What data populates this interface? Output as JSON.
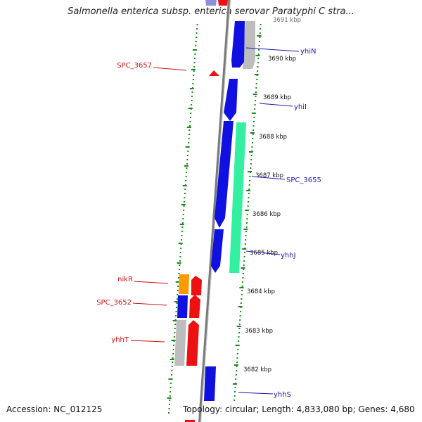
{
  "title": "Salmonella enterica subsp. enterica serovar Paratyphi C stra...",
  "ruler_labels": [
    {
      "text": "3690 kbp"
    },
    {
      "text": "3689 kbp"
    },
    {
      "text": "3688 kbp"
    },
    {
      "text": "3687 kbp"
    },
    {
      "text": "3686 kbp"
    },
    {
      "text": "3685 kbp"
    },
    {
      "text": "3684 kbp"
    },
    {
      "text": "3683 kbp"
    },
    {
      "text": "3682 kbp"
    }
  ],
  "top_partial_label": "3691 kbp",
  "gene_labels_right": [
    {
      "text": "yhiN"
    },
    {
      "text": "yhiI"
    },
    {
      "text": "SPC_3655"
    },
    {
      "text": "yhhJ"
    },
    {
      "text": "yhhS"
    }
  ],
  "gene_labels_left": [
    {
      "text": "SPC_3657"
    },
    {
      "text": "nikR"
    },
    {
      "text": "SPC_3652"
    },
    {
      "text": "yhhT"
    }
  ],
  "colors": {
    "blue": "#1010e0",
    "red": "#ee1111",
    "gray": "#bdbdbd",
    "green": "#33f0a0",
    "orange": "#ff9900",
    "dots": "#1a8a1a",
    "label_right": "#1a1aaa",
    "label_left": "#cc1111",
    "backbone": "#777777"
  },
  "footer": {
    "accession": "Accession: NC_012125",
    "topology": "Topology: circular; Length: 4,833,080 bp; Genes: 4,680"
  }
}
